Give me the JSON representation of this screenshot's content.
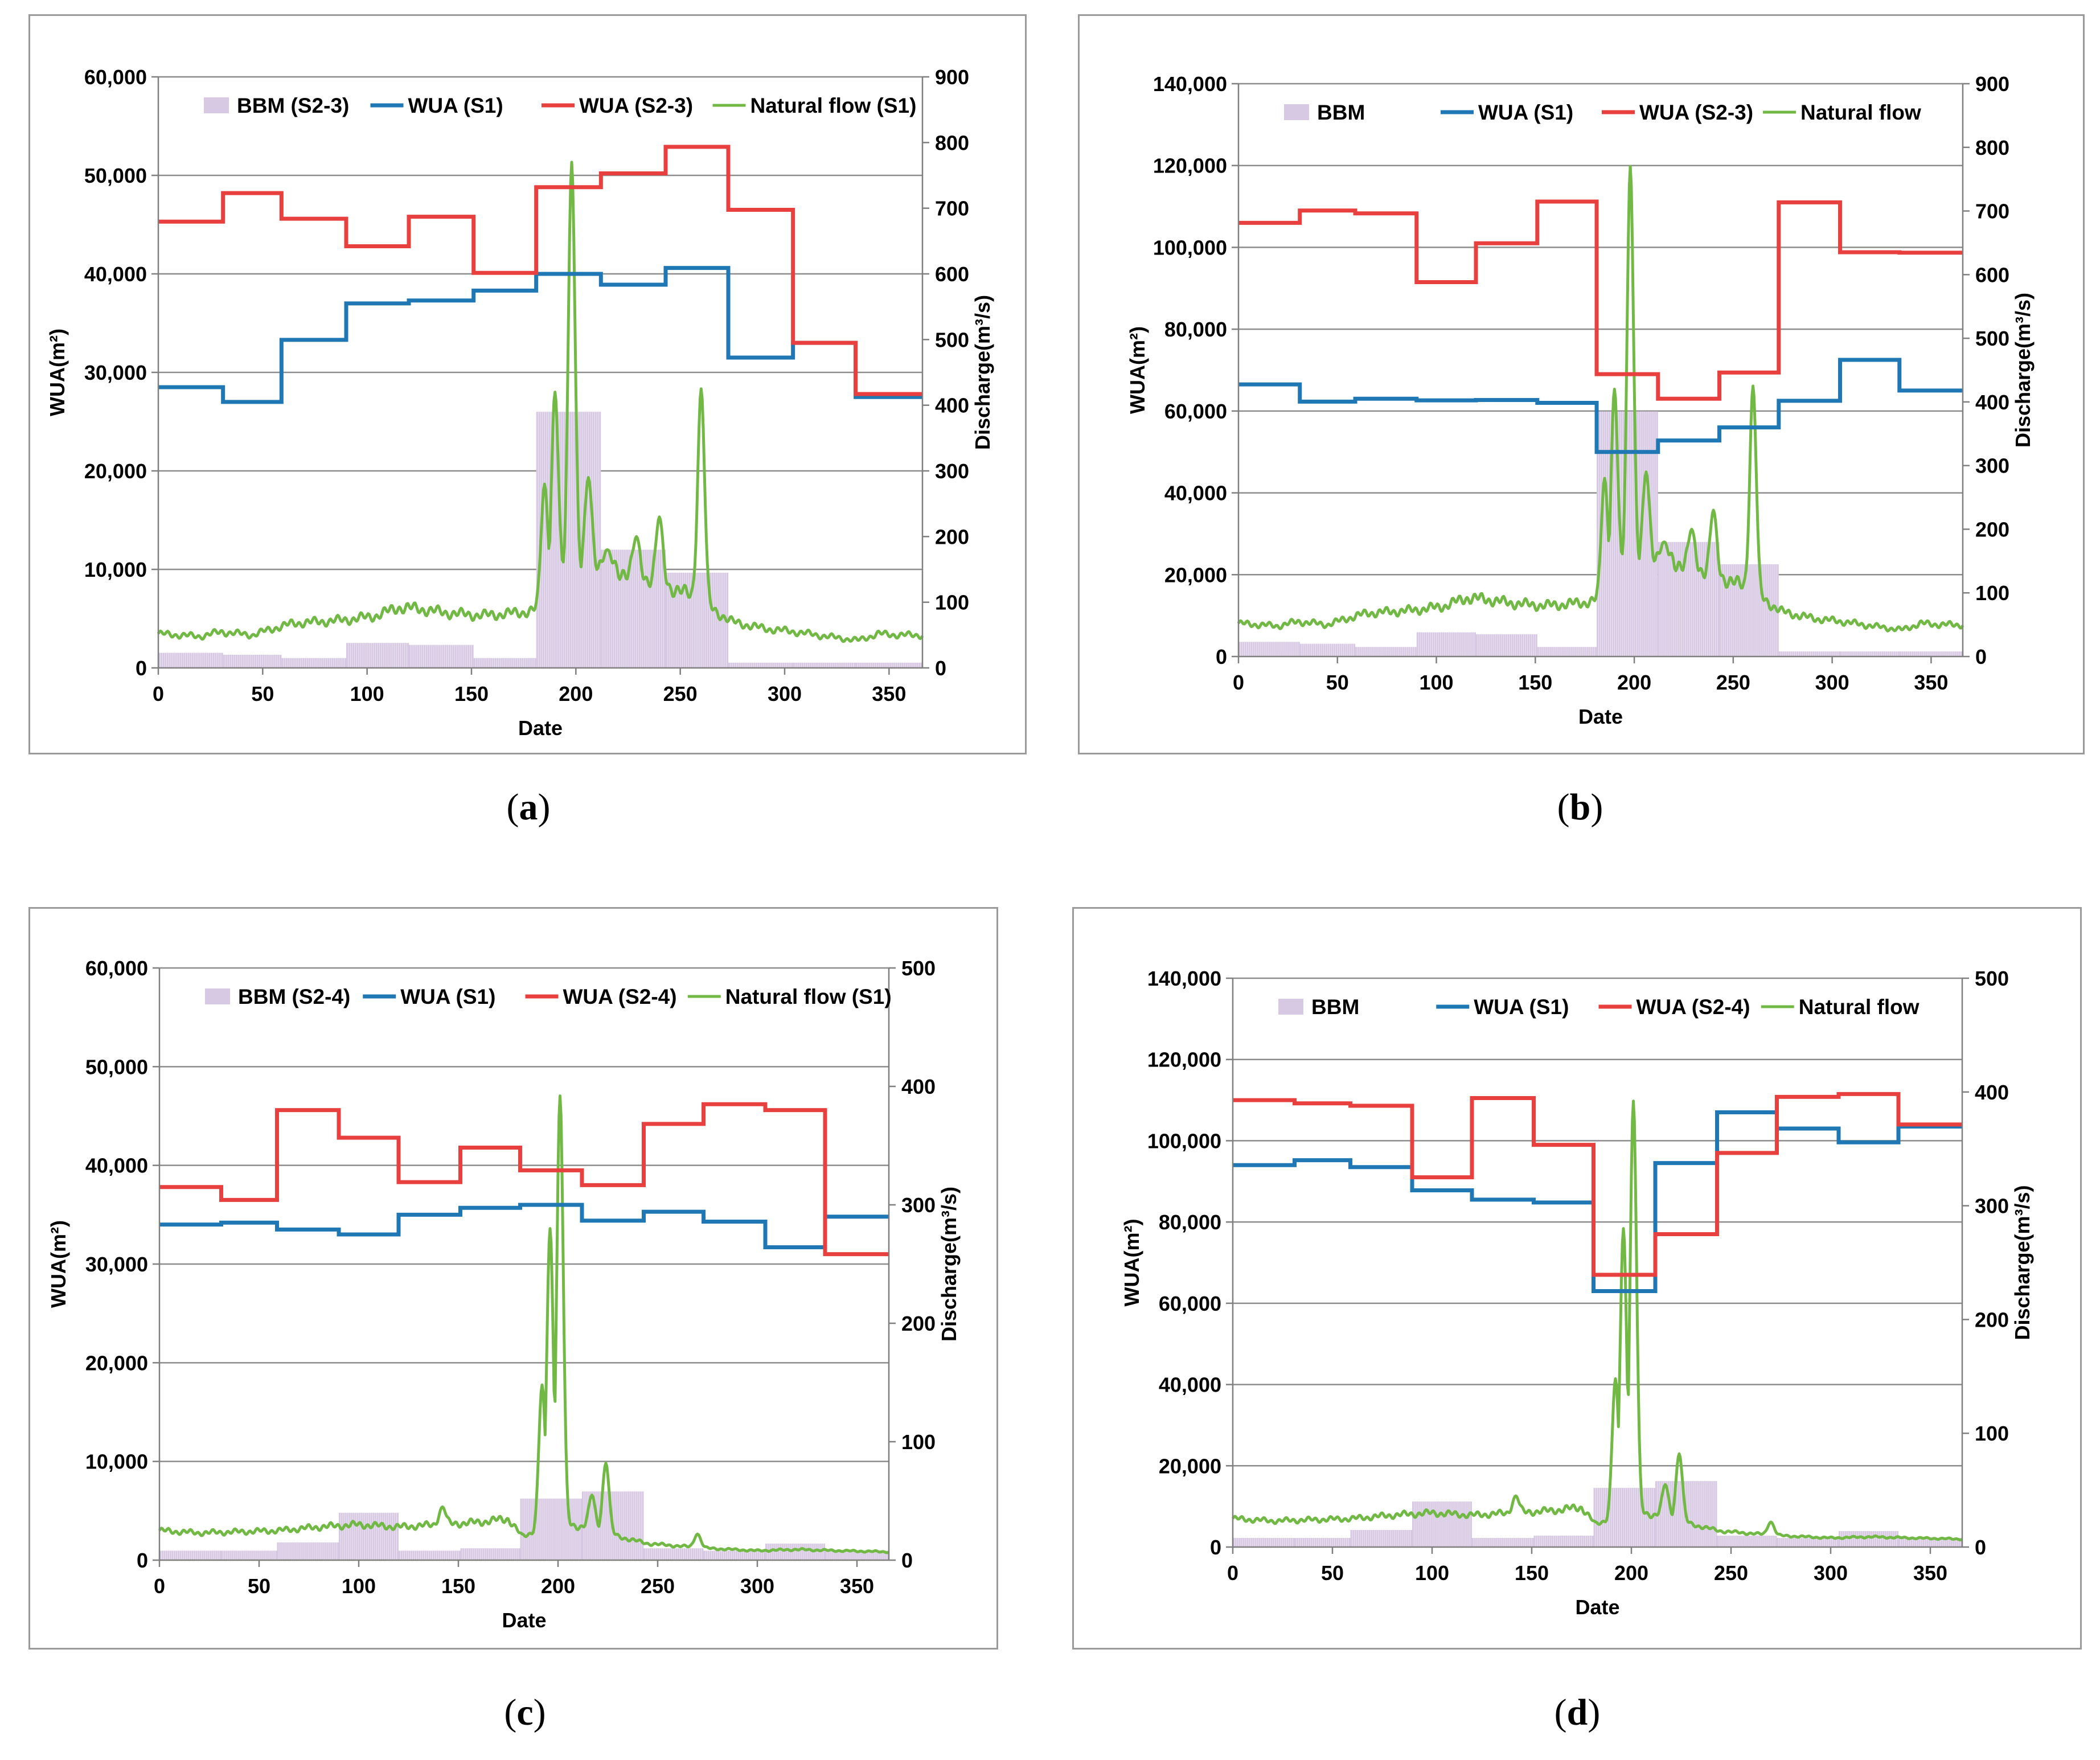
{
  "figure": {
    "panels": [
      {
        "label_open": "(",
        "label_letter": "a",
        "label_close": ")",
        "chart_index": 0
      },
      {
        "label_open": "(",
        "label_letter": "b",
        "label_close": ")",
        "chart_index": 1
      },
      {
        "label_open": "(",
        "label_letter": "c",
        "label_close": ")",
        "chart_index": 2
      },
      {
        "label_open": "(",
        "label_letter": "d",
        "label_close": ")",
        "chart_index": 3
      }
    ]
  },
  "colors": {
    "bbm": "#d7c9e3",
    "wua_s1": "#1f77b4",
    "wua_s2": "#e8403f",
    "natural_flow": "#71b944",
    "grid": "#8c8c8c"
  },
  "chart_data": [
    {
      "type": "combo-step-line-bar",
      "xlabel": "Date",
      "ylabel": "WUA(m²)",
      "y2label": "Discharge(m³/s)",
      "xlim": [
        0,
        366
      ],
      "xticks": [
        0,
        50,
        100,
        150,
        200,
        250,
        300,
        350
      ],
      "ylim": [
        0,
        60000
      ],
      "yticks": [
        0,
        10000,
        20000,
        30000,
        40000,
        50000,
        60000
      ],
      "ytick_labels": [
        "0",
        "10,000",
        "20,000",
        "30,000",
        "40,000",
        "50,000",
        "60,000"
      ],
      "y2lim": [
        0,
        900
      ],
      "y2ticks": [
        0,
        100,
        200,
        300,
        400,
        500,
        600,
        700,
        800,
        900
      ],
      "legend": [
        "BBM (S2-3)",
        "WUA (S1)",
        "WUA (S2-3)",
        "Natural flow (S1)"
      ],
      "month_starts": [
        0,
        31,
        59,
        90,
        120,
        151,
        181,
        212,
        243,
        273,
        304,
        334,
        366
      ],
      "bbm_discharge": [
        23,
        20,
        15,
        38,
        35,
        15,
        390,
        180,
        145,
        8,
        8,
        8
      ],
      "wua_s1": [
        28500,
        27000,
        33300,
        37000,
        37300,
        38300,
        40000,
        38900,
        40600,
        31500,
        33000,
        27500
      ],
      "wua_s2": [
        45300,
        48200,
        45600,
        42800,
        45800,
        40100,
        48800,
        50200,
        52900,
        46500,
        33000,
        27800
      ],
      "natural_flow": {
        "baseline": [
          [
            0,
            52
          ],
          [
            20,
            48
          ],
          [
            30,
            55
          ],
          [
            45,
            50
          ],
          [
            55,
            60
          ],
          [
            65,
            68
          ],
          [
            75,
            70
          ],
          [
            85,
            72
          ],
          [
            95,
            75
          ],
          [
            105,
            80
          ],
          [
            115,
            92
          ],
          [
            125,
            90
          ],
          [
            135,
            85
          ],
          [
            145,
            82
          ],
          [
            155,
            80
          ],
          [
            165,
            82
          ],
          [
            175,
            85
          ],
          [
            182,
            88
          ],
          [
            190,
            120
          ],
          [
            200,
            140
          ],
          [
            210,
            160
          ],
          [
            220,
            150
          ],
          [
            240,
            130
          ],
          [
            255,
            110
          ],
          [
            265,
            90
          ],
          [
            275,
            70
          ],
          [
            290,
            60
          ],
          [
            305,
            55
          ],
          [
            320,
            48
          ],
          [
            335,
            42
          ],
          [
            345,
            52
          ],
          [
            355,
            50
          ],
          [
            366,
            50
          ]
        ],
        "peaks": [
          {
            "day": 198,
            "value": 770
          },
          {
            "day": 190,
            "value": 420
          },
          {
            "day": 185,
            "value": 280
          },
          {
            "day": 206,
            "value": 290
          },
          {
            "day": 240,
            "value": 230
          },
          {
            "day": 229,
            "value": 200
          },
          {
            "day": 260,
            "value": 425
          },
          {
            "day": 215,
            "value": 180
          }
        ]
      }
    },
    {
      "type": "combo-step-line-bar",
      "xlabel": "Date",
      "ylabel": "WUA(m²)",
      "y2label": "Discharge(m³/s)",
      "xlim": [
        0,
        366
      ],
      "xticks": [
        0,
        50,
        100,
        150,
        200,
        250,
        300,
        350
      ],
      "ylim": [
        0,
        140000
      ],
      "yticks": [
        0,
        20000,
        40000,
        60000,
        80000,
        100000,
        120000,
        140000
      ],
      "ytick_labels": [
        "0",
        "20,000",
        "40,000",
        "60,000",
        "80,000",
        "100,000",
        "120,000",
        "140,000"
      ],
      "y2lim": [
        0,
        900
      ],
      "y2ticks": [
        0,
        100,
        200,
        300,
        400,
        500,
        600,
        700,
        800,
        900
      ],
      "legend": [
        "BBM",
        "WUA (S1)",
        "WUA (S2-3)",
        "Natural flow"
      ],
      "month_starts": [
        0,
        31,
        59,
        90,
        120,
        151,
        181,
        212,
        243,
        273,
        304,
        334,
        366
      ],
      "bbm_discharge": [
        23,
        20,
        15,
        38,
        35,
        15,
        385,
        180,
        145,
        8,
        8,
        8
      ],
      "wua_s1": [
        66500,
        62300,
        63000,
        62600,
        62700,
        62000,
        50000,
        52800,
        56000,
        62500,
        72500,
        65000
      ],
      "wua_s2": [
        106000,
        109000,
        108300,
        91500,
        101000,
        111200,
        69000,
        63000,
        69400,
        111000,
        98800,
        98700
      ],
      "natural_flow": {
        "baseline": [
          [
            0,
            52
          ],
          [
            20,
            48
          ],
          [
            30,
            55
          ],
          [
            45,
            50
          ],
          [
            55,
            60
          ],
          [
            65,
            68
          ],
          [
            75,
            70
          ],
          [
            85,
            72
          ],
          [
            95,
            75
          ],
          [
            105,
            80
          ],
          [
            115,
            92
          ],
          [
            125,
            90
          ],
          [
            135,
            85
          ],
          [
            145,
            82
          ],
          [
            155,
            80
          ],
          [
            165,
            82
          ],
          [
            175,
            85
          ],
          [
            182,
            88
          ],
          [
            190,
            120
          ],
          [
            200,
            140
          ],
          [
            210,
            160
          ],
          [
            220,
            150
          ],
          [
            240,
            130
          ],
          [
            255,
            110
          ],
          [
            265,
            90
          ],
          [
            275,
            70
          ],
          [
            290,
            60
          ],
          [
            305,
            55
          ],
          [
            320,
            48
          ],
          [
            335,
            42
          ],
          [
            345,
            52
          ],
          [
            355,
            50
          ],
          [
            366,
            50
          ]
        ],
        "peaks": [
          {
            "day": 198,
            "value": 770
          },
          {
            "day": 190,
            "value": 420
          },
          {
            "day": 185,
            "value": 280
          },
          {
            "day": 206,
            "value": 290
          },
          {
            "day": 240,
            "value": 230
          },
          {
            "day": 229,
            "value": 200
          },
          {
            "day": 260,
            "value": 425
          },
          {
            "day": 215,
            "value": 180
          }
        ]
      }
    },
    {
      "type": "combo-step-line-bar",
      "xlabel": "Date",
      "ylabel": "WUA(m²)",
      "y2label": "Discharge(m³/s)",
      "xlim": [
        0,
        366
      ],
      "xticks": [
        0,
        50,
        100,
        150,
        200,
        250,
        300,
        350
      ],
      "ylim": [
        0,
        60000
      ],
      "yticks": [
        0,
        10000,
        20000,
        30000,
        40000,
        50000,
        60000
      ],
      "ytick_labels": [
        "0",
        "10,000",
        "20,000",
        "30,000",
        "40,000",
        "50,000",
        "60,000"
      ],
      "y2lim": [
        0,
        500
      ],
      "y2ticks": [
        0,
        100,
        200,
        300,
        400,
        500
      ],
      "legend": [
        "BBM (S2-4)",
        "WUA (S1)",
        "WUA (S2-4)",
        "Natural flow (S1)"
      ],
      "month_starts": [
        0,
        31,
        59,
        90,
        120,
        151,
        181,
        212,
        243,
        273,
        304,
        334,
        366
      ],
      "bbm_discharge": [
        8,
        8,
        15,
        40,
        8,
        10,
        52,
        58,
        10,
        8,
        14,
        8
      ],
      "wua_s1": [
        34000,
        34200,
        33500,
        33000,
        35000,
        35700,
        36000,
        34400,
        35300,
        34300,
        31700,
        34800
      ],
      "wua_s2": [
        37800,
        36500,
        45600,
        42800,
        38300,
        41800,
        39500,
        38000,
        44200,
        46200,
        45600,
        31000
      ],
      "natural_flow": {
        "baseline": [
          [
            0,
            25
          ],
          [
            20,
            23
          ],
          [
            40,
            24
          ],
          [
            60,
            25
          ],
          [
            80,
            28
          ],
          [
            100,
            30
          ],
          [
            120,
            28
          ],
          [
            140,
            30
          ],
          [
            160,
            32
          ],
          [
            175,
            35
          ],
          [
            182,
            20
          ],
          [
            190,
            25
          ],
          [
            200,
            30
          ],
          [
            215,
            28
          ],
          [
            230,
            20
          ],
          [
            245,
            14
          ],
          [
            260,
            12
          ],
          [
            275,
            10
          ],
          [
            300,
            8
          ],
          [
            320,
            9
          ],
          [
            340,
            8
          ],
          [
            366,
            7
          ]
        ],
        "peaks": [
          {
            "day": 201,
            "value": 392
          },
          {
            "day": 196,
            "value": 280
          },
          {
            "day": 192,
            "value": 148
          },
          {
            "day": 199,
            "value": 135
          },
          {
            "day": 224,
            "value": 82
          },
          {
            "day": 142,
            "value": 45
          },
          {
            "day": 270,
            "value": 22
          },
          {
            "day": 217,
            "value": 55
          }
        ]
      }
    },
    {
      "type": "combo-step-line-bar",
      "xlabel": "Date",
      "ylabel": "WUA(m²)",
      "y2label": "Discharge(m³/s)",
      "xlim": [
        0,
        366
      ],
      "xticks": [
        0,
        50,
        100,
        150,
        200,
        250,
        300,
        350
      ],
      "ylim": [
        0,
        140000
      ],
      "yticks": [
        0,
        20000,
        40000,
        60000,
        80000,
        100000,
        120000,
        140000
      ],
      "ytick_labels": [
        "0",
        "20,000",
        "40,000",
        "60,000",
        "80,000",
        "100,000",
        "120,000",
        "140,000"
      ],
      "y2lim": [
        0,
        500
      ],
      "y2ticks": [
        0,
        100,
        200,
        300,
        400,
        500
      ],
      "legend": [
        "BBM",
        "WUA (S1)",
        "WUA (S2-4)",
        "Natural flow"
      ],
      "month_starts": [
        0,
        31,
        59,
        90,
        120,
        151,
        181,
        212,
        243,
        273,
        304,
        334,
        366
      ],
      "bbm_discharge": [
        8,
        8,
        15,
        40,
        8,
        10,
        52,
        58,
        10,
        8,
        14,
        8
      ],
      "wua_s1": [
        94000,
        95200,
        93500,
        87800,
        85500,
        84800,
        63000,
        94500,
        107000,
        103000,
        99600,
        103500
      ],
      "wua_s2": [
        110000,
        109200,
        108600,
        91000,
        110500,
        99000,
        67000,
        77000,
        97000,
        110800,
        111500,
        104000
      ],
      "natural_flow": {
        "baseline": [
          [
            0,
            25
          ],
          [
            20,
            23
          ],
          [
            40,
            24
          ],
          [
            60,
            25
          ],
          [
            80,
            28
          ],
          [
            100,
            30
          ],
          [
            120,
            28
          ],
          [
            140,
            30
          ],
          [
            160,
            32
          ],
          [
            175,
            35
          ],
          [
            182,
            20
          ],
          [
            190,
            25
          ],
          [
            200,
            30
          ],
          [
            215,
            28
          ],
          [
            230,
            20
          ],
          [
            245,
            14
          ],
          [
            260,
            12
          ],
          [
            275,
            10
          ],
          [
            300,
            8
          ],
          [
            320,
            9
          ],
          [
            340,
            8
          ],
          [
            366,
            7
          ]
        ],
        "peaks": [
          {
            "day": 201,
            "value": 392
          },
          {
            "day": 196,
            "value": 280
          },
          {
            "day": 192,
            "value": 148
          },
          {
            "day": 199,
            "value": 135
          },
          {
            "day": 224,
            "value": 82
          },
          {
            "day": 142,
            "value": 45
          },
          {
            "day": 270,
            "value": 22
          },
          {
            "day": 217,
            "value": 55
          }
        ]
      }
    }
  ]
}
